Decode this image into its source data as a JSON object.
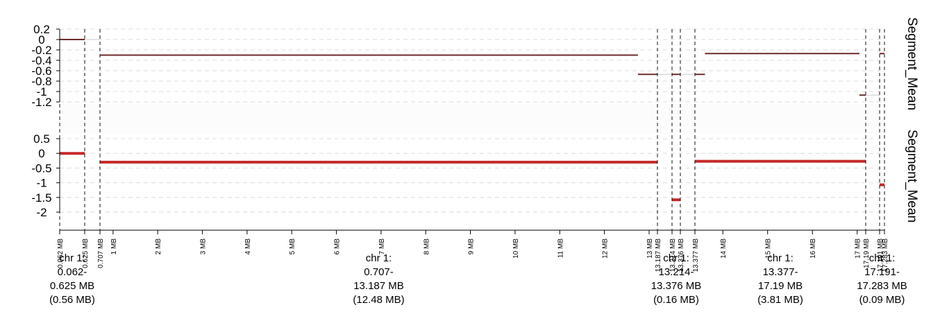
{
  "chart_data": {
    "type": "line",
    "genome_unit": "MB",
    "tracks": [
      {
        "name": "Segment_Mean",
        "style": "thin",
        "color": "#6e2a2a",
        "ylim": [
          -1.2,
          0.2
        ],
        "yticks": [
          0.2,
          0,
          -0.2,
          -0.4,
          -0.6,
          -0.8,
          -1,
          -1.2
        ],
        "ytick_labels": [
          "0.2",
          "0",
          "-0.2",
          "-0.4",
          "-0.6",
          "-0.8",
          "-1",
          "-1.2"
        ],
        "segments": [
          {
            "start": 0.062,
            "end": 0.625,
            "value": 0.0
          },
          {
            "start": 0.707,
            "end": 12.75,
            "value": -0.3
          },
          {
            "start": 12.75,
            "end": 13.187,
            "value": -0.67
          },
          {
            "start": 13.214,
            "end": 13.376,
            "value": -0.67
          },
          {
            "start": 13.377,
            "end": 13.6,
            "value": -0.67
          },
          {
            "start": 13.6,
            "end": 17.05,
            "value": -0.27
          },
          {
            "start": 17.05,
            "end": 17.19,
            "value": -1.07
          },
          {
            "start": 17.191,
            "end": 17.283,
            "value": -0.27
          }
        ]
      },
      {
        "name": "Segment_Mean",
        "style": "thick",
        "color": "#c62828",
        "ylim": [
          -2.4,
          0.5
        ],
        "yticks": [
          0.5,
          0,
          -0.5,
          -1,
          -1.5,
          -2
        ],
        "ytick_labels": [
          "0.5",
          "0",
          "-0.5",
          "-1",
          "-1.5",
          "-2"
        ],
        "segments": [
          {
            "start": 0.062,
            "end": 0.625,
            "value": 0.0
          },
          {
            "start": 0.707,
            "end": 13.187,
            "value": -0.3
          },
          {
            "start": 13.214,
            "end": 13.376,
            "value": -1.58
          },
          {
            "start": 13.377,
            "end": 17.19,
            "value": -0.27
          },
          {
            "start": 17.191,
            "end": 17.283,
            "value": -1.07
          }
        ]
      }
    ],
    "regions": [
      {
        "chr": "chr 1",
        "start": 0.062,
        "end": 0.625,
        "label_lines": [
          "chr 1:",
          "0.062-",
          "0.625 MB",
          "(0.56 MB)"
        ],
        "start_label": "0.062 MB",
        "end_label": "0.625 MB"
      },
      {
        "chr": "chr 1",
        "start": 0.707,
        "end": 13.187,
        "label_lines": [
          "chr 1:",
          "0.707-",
          "13.187 MB",
          "(12.48 MB)"
        ],
        "start_label": "0.707 MB",
        "end_label": "13.187 MB"
      },
      {
        "chr": "chr 1",
        "start": 13.214,
        "end": 13.376,
        "label_lines": [
          "chr 1:",
          "13.214-",
          "13.376 MB",
          "(0.16 MB)"
        ],
        "start_label": "13.214 MB",
        "end_label": "13.376 MB"
      },
      {
        "chr": "chr 1",
        "start": 13.377,
        "end": 17.19,
        "label_lines": [
          "chr 1:",
          "13.377-",
          "17.19 MB",
          "(3.81 MB)"
        ],
        "start_label": "13.377 MB",
        "end_label": "17.19 MB"
      },
      {
        "chr": "chr 1",
        "start": 17.191,
        "end": 17.283,
        "label_lines": [
          "chr 1:",
          "17.191-",
          "17.283 MB",
          "(0.09 MB)"
        ],
        "start_label": "17.191 MB",
        "end_label": "17.283 MB"
      }
    ],
    "major_ticks": [
      {
        "value": 1,
        "label": "1 MB"
      },
      {
        "value": 2,
        "label": "2 MB"
      },
      {
        "value": 3,
        "label": "3 MB"
      },
      {
        "value": 4,
        "label": "4 MB"
      },
      {
        "value": 5,
        "label": "5 MB"
      },
      {
        "value": 6,
        "label": "6 MB"
      },
      {
        "value": 7,
        "label": "7 MB"
      },
      {
        "value": 8,
        "label": "8 MB"
      },
      {
        "value": 9,
        "label": "9 MB"
      },
      {
        "value": 10,
        "label": "10 MB"
      },
      {
        "value": 11,
        "label": "11 MB"
      },
      {
        "value": 12,
        "label": "12 MB"
      },
      {
        "value": 13,
        "label": "13 MB"
      },
      {
        "value": 14,
        "label": "14 MB"
      },
      {
        "value": 15,
        "label": "15 MB"
      },
      {
        "value": 16,
        "label": "16 MB"
      },
      {
        "value": 17,
        "label": "17 MB"
      }
    ],
    "grid": true
  }
}
